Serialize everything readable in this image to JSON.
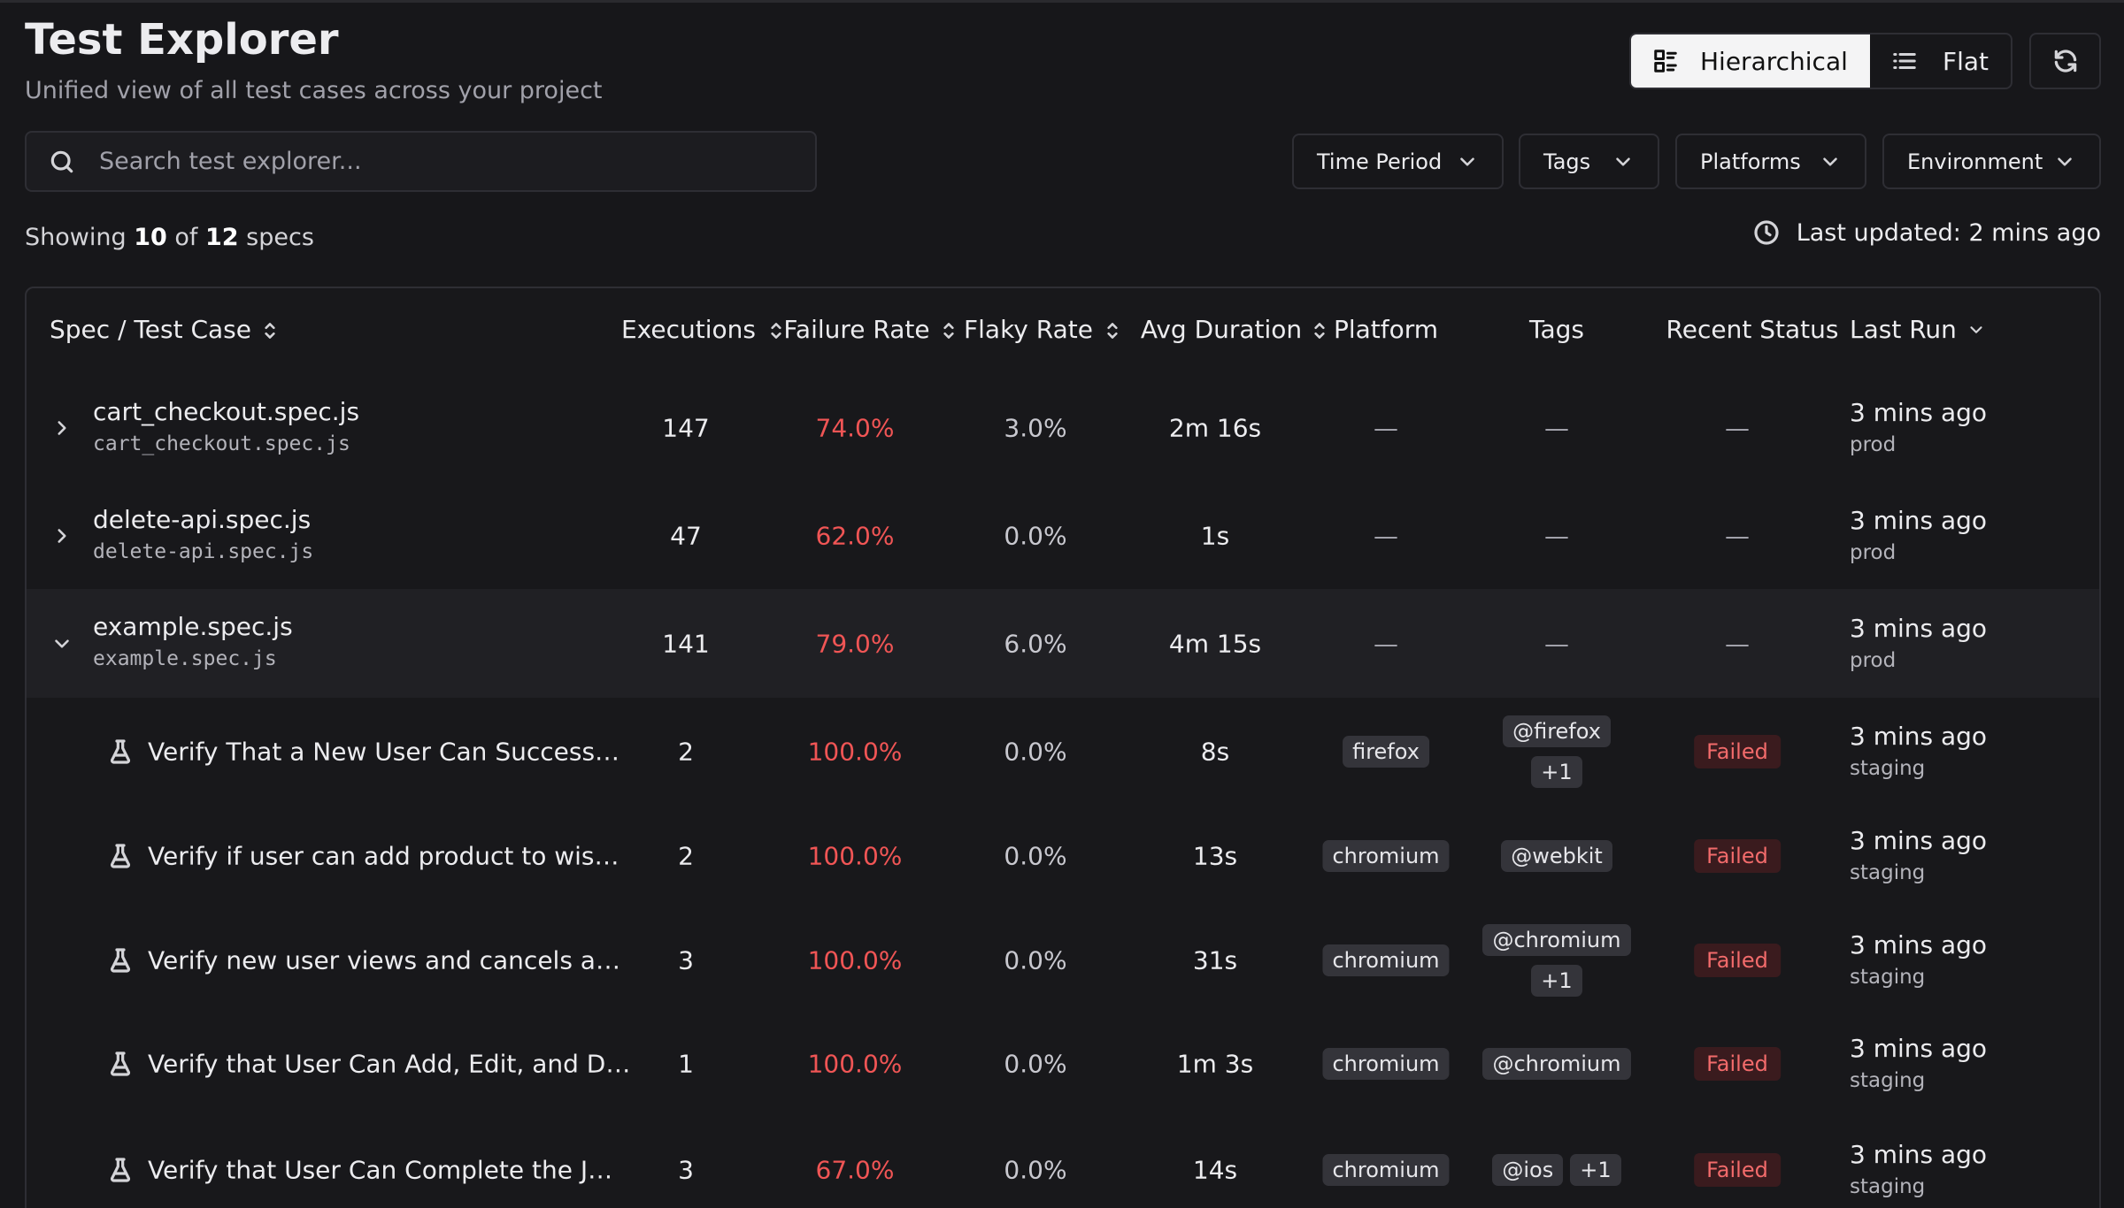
{
  "header": {
    "title": "Test Explorer",
    "subtitle": "Unified view of all test cases across your project"
  },
  "view_toggle": [
    "Hierarchical",
    "Flat"
  ],
  "search_placeholder": "Search test explorer...",
  "filters": [
    "Time Period",
    "Tags",
    "Platforms",
    "Environment"
  ],
  "summary": {
    "prefix": "Showing",
    "shown": 10,
    "of": "of",
    "total": 12,
    "suffix": "specs"
  },
  "last_updated": "Last updated: 2 mins ago",
  "table": {
    "columns": [
      "Spec / Test Case",
      "Executions",
      "Failure Rate",
      "Flaky Rate",
      "Avg Duration",
      "Platform",
      "Tags",
      "Recent Status",
      "Last Run"
    ],
    "rows": [
      {
        "name": "cart_checkout.spec.js",
        "file": "cart_checkout.spec.js",
        "expanded": false,
        "executions": 147,
        "failure_rate": "74.0%",
        "flaky_rate": "3.0%",
        "avg_duration": "2m 16s",
        "platform": "—",
        "tags": "—",
        "status": "—",
        "last_run": "3 mins ago",
        "env": "prod"
      },
      {
        "name": "delete-api.spec.js",
        "file": "delete-api.spec.js",
        "expanded": false,
        "executions": 47,
        "failure_rate": "62.0%",
        "flaky_rate": "0.0%",
        "avg_duration": "1s",
        "platform": "—",
        "tags": "—",
        "status": "—",
        "last_run": "3 mins ago",
        "env": "prod"
      },
      {
        "name": "example.spec.js",
        "file": "example.spec.js",
        "expanded": true,
        "executions": 141,
        "failure_rate": "79.0%",
        "flaky_rate": "6.0%",
        "avg_duration": "4m 15s",
        "platform": "—",
        "tags": "—",
        "status": "—",
        "last_run": "3 mins ago",
        "env": "prod"
      },
      {
        "name": "Verify That a New User Can Success…",
        "executions": 2,
        "failure_rate": "100.0%",
        "flaky_rate": "0.0%",
        "avg_duration": "8s",
        "platform": "firefox",
        "tags": [
          "@firefox",
          "+1"
        ],
        "status": "Failed",
        "last_run": "3 mins ago",
        "env": "staging"
      },
      {
        "name": "Verify if user can add product to wis…",
        "executions": 2,
        "failure_rate": "100.0%",
        "flaky_rate": "0.0%",
        "avg_duration": "13s",
        "platform": "chromium",
        "tags": [
          "@webkit"
        ],
        "status": "Failed",
        "last_run": "3 mins ago",
        "env": "staging"
      },
      {
        "name": "Verify new user views and cancels a…",
        "executions": 3,
        "failure_rate": "100.0%",
        "flaky_rate": "0.0%",
        "avg_duration": "31s",
        "platform": "chromium",
        "tags": [
          "@chromium",
          "+1"
        ],
        "status": "Failed",
        "last_run": "3 mins ago",
        "env": "staging"
      },
      {
        "name": "Verify that User Can Add, Edit, and D…",
        "executions": 1,
        "failure_rate": "100.0%",
        "flaky_rate": "0.0%",
        "avg_duration": "1m 3s",
        "platform": "chromium",
        "tags": [
          "@chromium"
        ],
        "status": "Failed",
        "last_run": "3 mins ago",
        "env": "staging"
      },
      {
        "name": "Verify that User Can Complete the J…",
        "executions": 3,
        "failure_rate": "67.0%",
        "flaky_rate": "0.0%",
        "avg_duration": "14s",
        "platform": "chromium",
        "tags": [
          "@ios",
          "+1"
        ],
        "status": "Failed",
        "last_run": "3 mins ago",
        "env": "staging"
      }
    ]
  }
}
